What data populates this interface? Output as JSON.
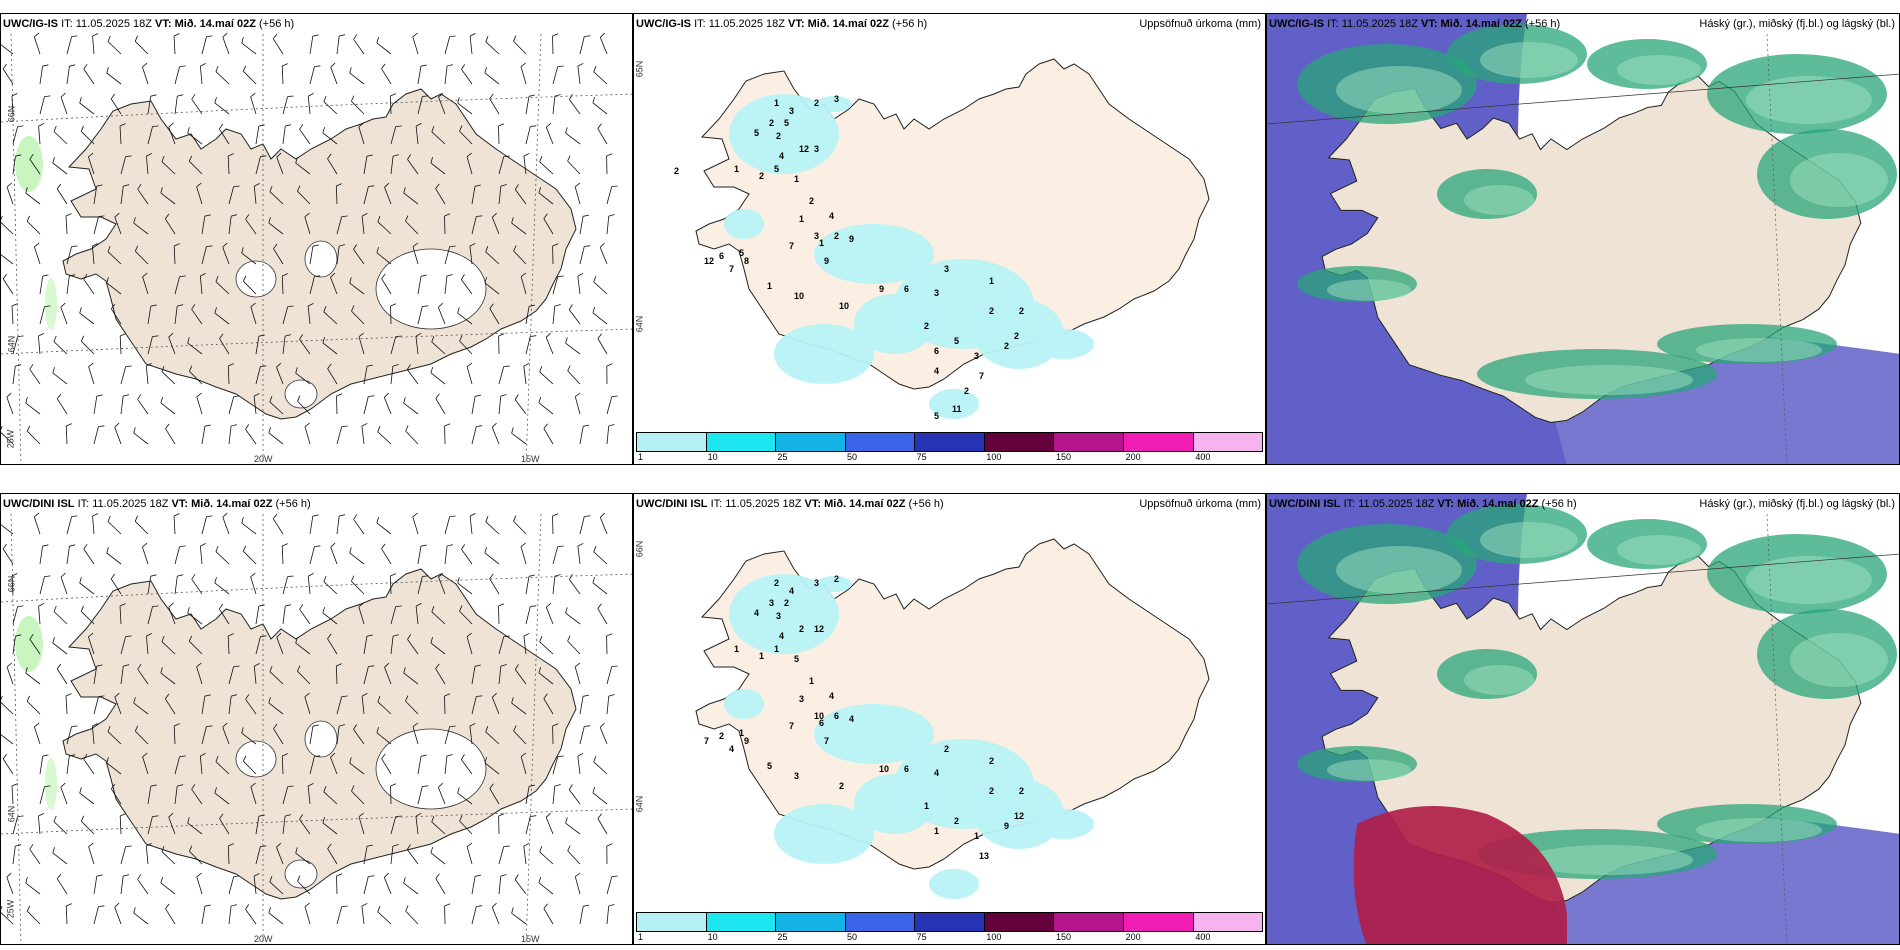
{
  "rows": [
    {
      "model": "UWC/IG-IS",
      "it": "IT: 11.05.2025 18Z",
      "vt": "VT: Mið. 14.maí 02Z",
      "lead": "(+56 h)",
      "precip_numbers": [
        "2",
        "3",
        "1",
        "3",
        "2",
        "5",
        "5",
        "2",
        "12",
        "3",
        "4",
        "5",
        "1",
        "2",
        "1",
        "2",
        "1",
        "4",
        "2",
        "1",
        "9",
        "12",
        "6",
        "5",
        "7",
        "8",
        "7",
        "3",
        "9",
        "1",
        "10",
        "10",
        "9",
        "6",
        "3",
        "3",
        "1",
        "2",
        "5",
        "2",
        "6",
        "3",
        "2",
        "2",
        "2",
        "7",
        "2",
        "4",
        "11",
        "5",
        "2"
      ]
    },
    {
      "model": "UWC/DINI ISL",
      "it": "IT: 11.05.2025 18Z",
      "vt": "VT: Mið. 14.maí 02Z",
      "lead": "(+56 h)",
      "precip_numbers": [
        "3",
        "2",
        "2",
        "4",
        "3",
        "2",
        "4",
        "3",
        "2",
        "12",
        "4",
        "1",
        "1",
        "1",
        "5",
        "1",
        "3",
        "4",
        "6",
        "6",
        "7",
        "7",
        "2",
        "1",
        "4",
        "9",
        "7",
        "10",
        "4",
        "5",
        "3",
        "2",
        "10",
        "6",
        "2",
        "4",
        "2",
        "2",
        "2",
        "1",
        "1",
        "1",
        "9",
        "2",
        "12",
        "13"
      ]
    }
  ],
  "precip_title": "Uppsöfnuð úrkoma (mm)",
  "cloud_title": "Háský (gr.), miðský (fj.bl.) og lágský (bl.)",
  "colorbar": {
    "ticks": [
      "1",
      "10",
      "25",
      "50",
      "75",
      "100",
      "150",
      "200",
      "400"
    ],
    "colors": [
      "#b4f0f5",
      "#1ee6f0",
      "#14b4e6",
      "#3c64e6",
      "#2832b4",
      "#64003c",
      "#b4148c",
      "#f01eb4",
      "#f5b4f0"
    ]
  },
  "grid_labels": {
    "lat_66": "66N",
    "lat_64": "64N",
    "lon_25": "25W",
    "lon_20": "20W",
    "lon_15": "15W"
  },
  "colors": {
    "land": "#eee3d5",
    "land_precip": "#fbeee2",
    "precip_light": "#b8f2f6",
    "sea_cloud": "#6060c8",
    "high_cloud": "#2aa67a",
    "mid_cloud": "#a0e0c0",
    "low_cloud": "#b0204a"
  }
}
